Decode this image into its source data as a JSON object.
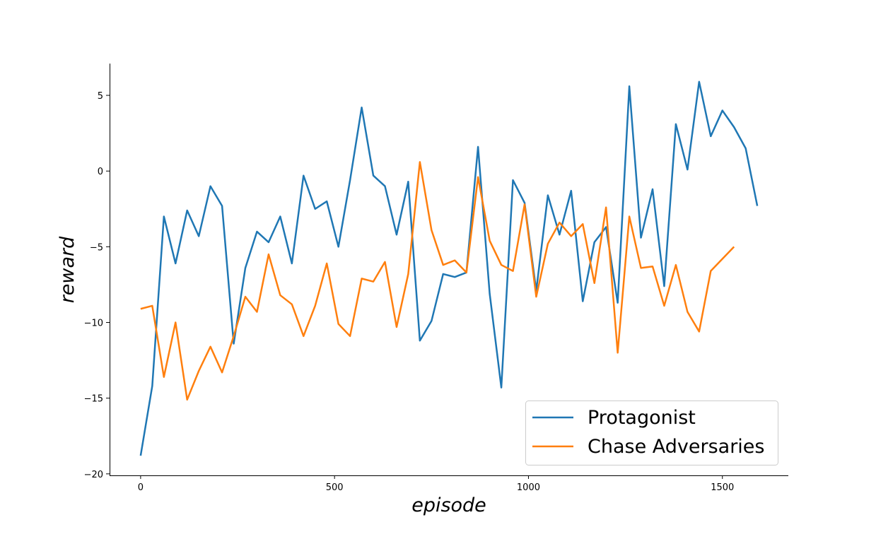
{
  "chart_data": {
    "type": "line",
    "title": "",
    "xlabel": "episode",
    "ylabel": "reward",
    "xlim": [
      -80,
      1670
    ],
    "ylim": [
      -20.1,
      7.1
    ],
    "xticks": [
      0,
      500,
      1000,
      1500
    ],
    "yticks": [
      -20,
      -15,
      -10,
      -5,
      0,
      5
    ],
    "xtick_labels": [
      "0",
      "500",
      "1000",
      "1500"
    ],
    "ytick_labels": [
      "−20",
      "−15",
      "−10",
      "−5",
      "0",
      "5"
    ],
    "grid": false,
    "legend_position": "lower-right",
    "series": [
      {
        "name": "Protagonist",
        "color": "#1f77b4",
        "x": [
          0,
          30,
          60,
          90,
          120,
          150,
          180,
          210,
          240,
          270,
          300,
          330,
          360,
          390,
          420,
          450,
          480,
          510,
          540,
          570,
          600,
          630,
          660,
          690,
          720,
          750,
          780,
          810,
          840,
          870,
          900,
          930,
          960,
          990,
          1020,
          1050,
          1080,
          1110,
          1140,
          1170,
          1200,
          1230,
          1260,
          1290,
          1320,
          1350,
          1380,
          1410,
          1440,
          1470,
          1500,
          1530,
          1560,
          1590
        ],
        "values": [
          -18.8,
          -14.2,
          -3.0,
          -6.1,
          -2.6,
          -4.3,
          -1.0,
          -2.3,
          -11.4,
          -6.4,
          -4.0,
          -4.7,
          -3.0,
          -6.1,
          -0.3,
          -2.5,
          -2.0,
          -5.0,
          -0.6,
          4.2,
          -0.3,
          -1.0,
          -4.2,
          -0.7,
          -11.2,
          -9.9,
          -6.8,
          -7.0,
          -6.7,
          1.6,
          -8.1,
          -14.3,
          -0.6,
          -2.1,
          -7.9,
          -1.6,
          -4.2,
          -1.3,
          -8.6,
          -4.7,
          -3.7,
          -8.7,
          5.6,
          -4.4,
          -1.2,
          -7.6,
          3.1,
          0.1,
          5.9,
          2.3,
          4.0,
          2.9,
          1.5,
          -2.3
        ]
      },
      {
        "name": "Chase Adversaries",
        "color": "#ff7f0e",
        "x": [
          0,
          30,
          60,
          90,
          120,
          150,
          180,
          210,
          240,
          270,
          300,
          330,
          360,
          390,
          420,
          450,
          480,
          510,
          540,
          570,
          600,
          630,
          660,
          690,
          720,
          750,
          780,
          810,
          840,
          870,
          900,
          930,
          960,
          990,
          1020,
          1050,
          1080,
          1110,
          1140,
          1170,
          1200,
          1230,
          1260,
          1290,
          1320,
          1350,
          1380,
          1410,
          1440,
          1470,
          1500,
          1530
        ],
        "values": [
          -9.1,
          -8.9,
          -13.6,
          -10.0,
          -15.1,
          -13.2,
          -11.6,
          -13.3,
          -10.9,
          -8.3,
          -9.3,
          -5.5,
          -8.2,
          -8.8,
          -10.9,
          -8.9,
          -6.1,
          -10.1,
          -10.9,
          -7.1,
          -7.3,
          -6.0,
          -10.3,
          -6.8,
          0.6,
          -3.9,
          -6.2,
          -5.9,
          -6.7,
          -0.4,
          -4.6,
          -6.2,
          -6.6,
          -2.2,
          -8.3,
          -4.8,
          -3.4,
          -4.3,
          -3.5,
          -7.4,
          -2.4,
          -12.0,
          -3.0,
          -6.4,
          -6.3,
          -8.9,
          -6.2,
          -9.3,
          -10.6,
          -6.6,
          -5.8,
          -5.0
        ]
      }
    ]
  }
}
